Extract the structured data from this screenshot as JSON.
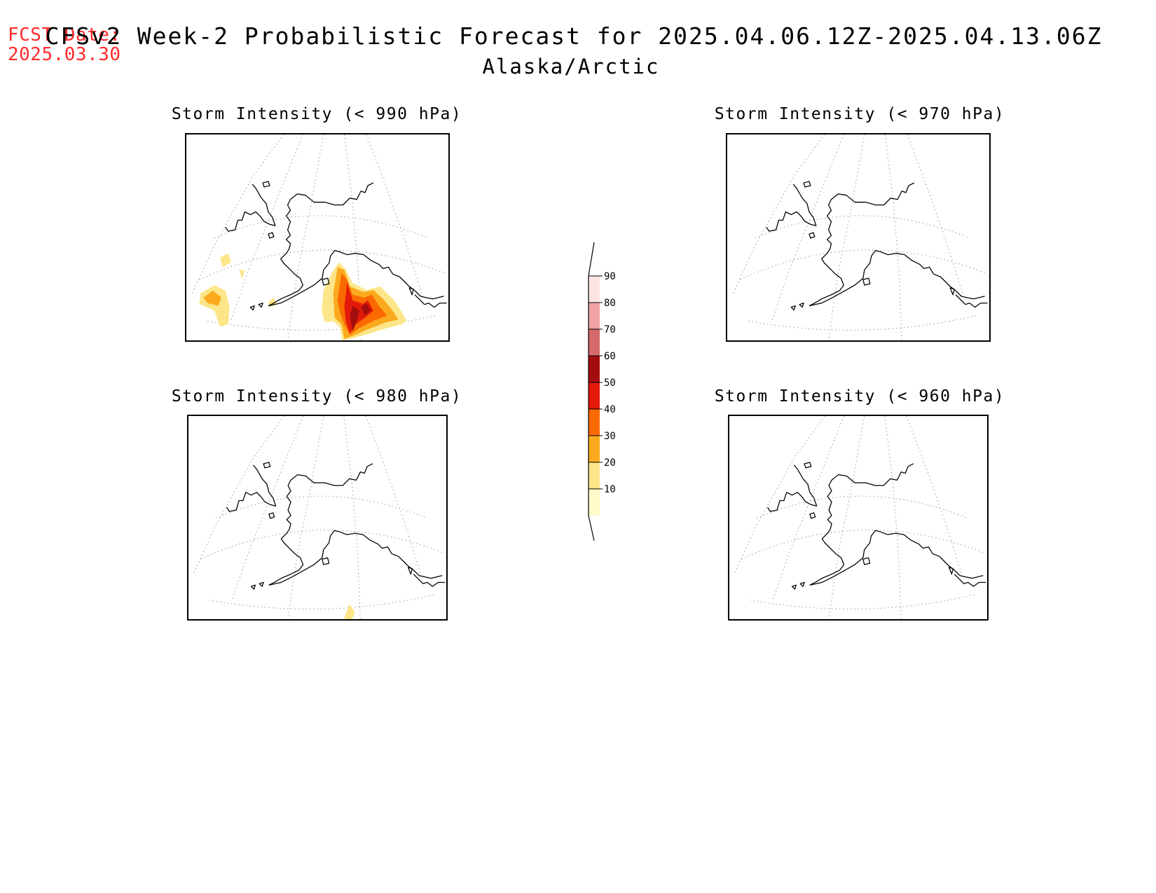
{
  "header": {
    "fcst_label": "FCST Date:",
    "fcst_date": "2025.03.30",
    "title": "CFSv2 Week-2 Probabilistic Forecast for 2025.04.06.12Z-2025.04.13.06Z",
    "subtitle": "Alaska/Arctic"
  },
  "panels": [
    {
      "title": "Storm Intensity (< 990 hPa)",
      "threshold_hpa": 990,
      "has_shading": true
    },
    {
      "title": "Storm Intensity (< 970 hPa)",
      "threshold_hpa": 970,
      "has_shading": false
    },
    {
      "title": "Storm Intensity (< 980 hPa)",
      "threshold_hpa": 980,
      "has_shading": true
    },
    {
      "title": "Storm Intensity (< 960 hPa)",
      "threshold_hpa": 960,
      "has_shading": false
    }
  ],
  "colorbar": {
    "levels": [
      "10",
      "20",
      "30",
      "40",
      "50",
      "60",
      "70",
      "80",
      "90"
    ],
    "colors": [
      "#fffac8",
      "#fde68a",
      "#fbaa1e",
      "#fb6a00",
      "#e31a0a",
      "#a40d0d",
      "#d46a6a",
      "#f0a3a3",
      "#fde4e4",
      "#ffffff"
    ]
  },
  "chart_data": {
    "type": "heatmap",
    "title": "CFSv2 Week-2 Probabilistic Forecast for 2025.04.06.12Z-2025.04.13.06Z",
    "subtitle": "Alaska/Arctic",
    "levels": [
      10,
      20,
      30,
      40,
      50,
      60,
      70,
      80,
      90
    ],
    "panels": [
      {
        "title": "Storm Intensity (< 990 hPa)",
        "max_probability": 70
      },
      {
        "title": "Storm Intensity (< 970 hPa)",
        "max_probability": 0
      },
      {
        "title": "Storm Intensity (< 980 hPa)",
        "max_probability": 20
      },
      {
        "title": "Storm Intensity (< 960 hPa)",
        "max_probability": 0
      }
    ]
  }
}
